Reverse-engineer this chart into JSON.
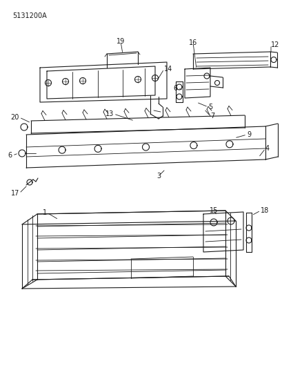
{
  "part_number": "5131200A",
  "bg": "#ffffff",
  "lc": "#1a1a1a",
  "figsize": [
    4.1,
    5.33
  ],
  "dpi": 100,
  "label_fs": 7
}
